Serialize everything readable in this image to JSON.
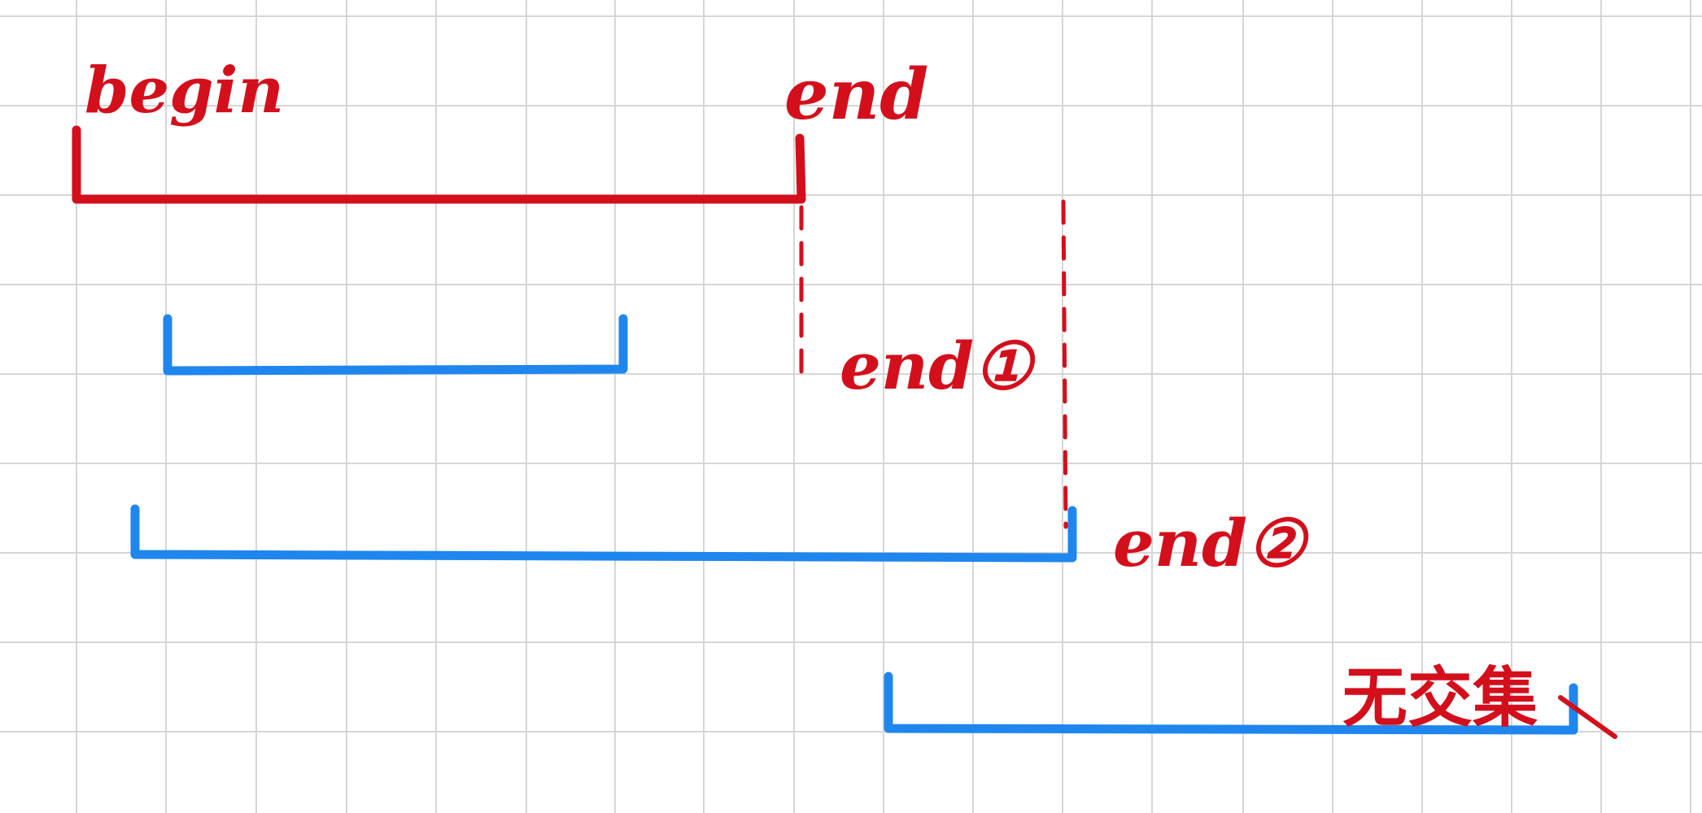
{
  "colors": {
    "grid": "#d6d6d6",
    "red": "#d40f1c",
    "blue": "#1f86ee",
    "background": "#ffffff"
  },
  "labels": {
    "begin": "begin",
    "end": "end",
    "end_case_1": "end①",
    "end_case_2": "end②",
    "no_intersection": "无交集"
  }
}
